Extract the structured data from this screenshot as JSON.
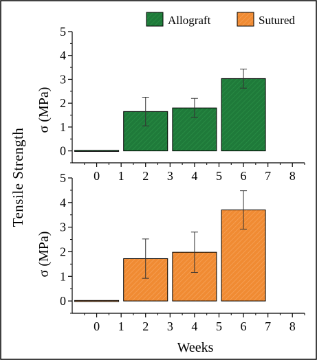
{
  "figure": {
    "ylabel_shared": "Tensile Strength",
    "xlabel": "Weeks"
  },
  "chart_data": [
    {
      "type": "bar",
      "panel": "top",
      "series_name": "Allograft",
      "color": "#1f7a3a",
      "ylabel": "σ (MPa)",
      "ylim": [
        -0.5,
        5
      ],
      "yticks": [
        0,
        1,
        2,
        3,
        4,
        5
      ],
      "xlim": [
        -1,
        8.5
      ],
      "xticks": [
        0,
        1,
        2,
        3,
        4,
        5,
        6,
        7,
        8
      ],
      "bar_width": 1.8,
      "x": [
        0,
        2,
        4,
        6
      ],
      "values": [
        0.0,
        1.65,
        1.8,
        3.03
      ],
      "errors": [
        0.0,
        0.6,
        0.4,
        0.4
      ],
      "legend_position": "top"
    },
    {
      "type": "bar",
      "panel": "bottom",
      "series_name": "Sutured",
      "color": "#f08b33",
      "ylabel": "σ (MPa)",
      "ylim": [
        -0.5,
        5
      ],
      "yticks": [
        0,
        1,
        2,
        3,
        4,
        5
      ],
      "xlim": [
        -1,
        8.5
      ],
      "xticks": [
        0,
        1,
        2,
        3,
        4,
        5,
        6,
        7,
        8
      ],
      "bar_width": 1.8,
      "x": [
        0,
        2,
        4,
        6
      ],
      "values": [
        0.0,
        1.72,
        1.98,
        3.7
      ],
      "errors": [
        0.0,
        0.8,
        0.82,
        0.78
      ],
      "legend_position": "top"
    }
  ],
  "legend": [
    {
      "label": "Allograft",
      "color": "#1f7a3a"
    },
    {
      "label": "Sutured",
      "color": "#f08b33"
    }
  ]
}
